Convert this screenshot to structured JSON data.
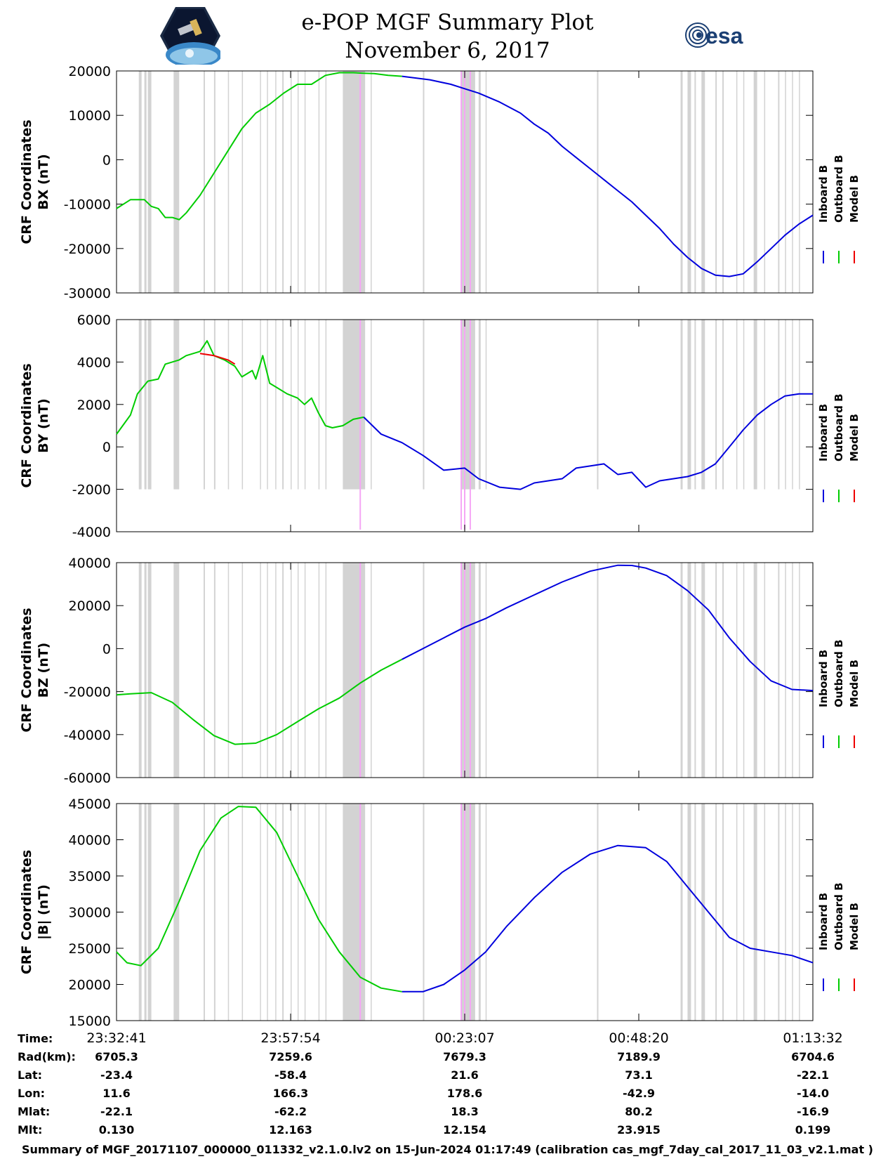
{
  "title": {
    "line1": "e-POP MGF Summary Plot",
    "line2": "November 6, 2017"
  },
  "logos": {
    "left": "cassiope-mission-logo",
    "right": "esa"
  },
  "colors": {
    "inboard": "#0000dd",
    "outboard": "#00cc00",
    "model": "#ee0000",
    "gap_band": "#d3d3d3",
    "event_line": "#f5a6f5"
  },
  "legend": {
    "entries": [
      {
        "name": "Inboard B",
        "color": "#0000dd"
      },
      {
        "name": "Outboard B",
        "color": "#00cc00"
      },
      {
        "name": "Model B",
        "color": "#ee0000"
      }
    ]
  },
  "chart_data": [
    {
      "type": "line",
      "id": "bx",
      "ylabel_line1": "CRF Coordinates",
      "ylabel_line2": "BX (nT)",
      "ylim": [
        -30000,
        20000
      ],
      "yticks": [
        20000,
        10000,
        0,
        -10000,
        -20000,
        -30000
      ],
      "ytick_labels": [
        "20000",
        "10000",
        "0",
        "-10000",
        "-20000",
        "-30000"
      ],
      "series": [
        {
          "name": "Outboard B",
          "color": "#00cc00",
          "x": [
            0,
            0.02,
            0.04,
            0.05,
            0.06,
            0.07,
            0.08,
            0.09,
            0.1,
            0.12,
            0.14,
            0.16,
            0.18,
            0.2,
            0.22,
            0.24,
            0.26,
            0.28,
            0.3,
            0.32,
            0.34,
            0.355,
            0.37,
            0.39,
            0.41
          ],
          "y": [
            -11000,
            -9000,
            -9000,
            -10500,
            -11000,
            -13000,
            -13000,
            -13500,
            -12000,
            -8000,
            -3000,
            2000,
            7000,
            10500,
            12500,
            15000,
            17000,
            17000,
            19000,
            19600,
            19600,
            19500,
            19400,
            19000,
            18800
          ]
        },
        {
          "name": "Inboard B",
          "color": "#0000dd",
          "x": [
            0.41,
            0.45,
            0.48,
            0.5,
            0.52,
            0.55,
            0.58,
            0.6,
            0.62,
            0.64,
            0.66,
            0.68,
            0.7,
            0.72,
            0.74,
            0.76,
            0.78,
            0.8,
            0.82,
            0.84,
            0.86,
            0.88,
            0.9,
            0.92,
            0.94,
            0.96,
            0.98,
            1.0
          ],
          "y": [
            18800,
            18000,
            17000,
            16000,
            15000,
            13000,
            10500,
            8000,
            6000,
            3000,
            500,
            -2000,
            -4500,
            -7000,
            -9500,
            -12500,
            -15500,
            -19000,
            -22000,
            -24500,
            -26000,
            -26300,
            -25700,
            -23000,
            -20000,
            -17000,
            -14500,
            -12500
          ]
        },
        {
          "name": "Model B",
          "color": "#ee0000",
          "x": [],
          "y": []
        }
      ]
    },
    {
      "type": "line",
      "id": "by",
      "ylabel_line1": "CRF Coordinates",
      "ylabel_line2": "BY (nT)",
      "ylim": [
        -4000,
        6000
      ],
      "yticks": [
        6000,
        4000,
        2000,
        0,
        -2000,
        -4000
      ],
      "ytick_labels": [
        "6000",
        "4000",
        "2000",
        "0",
        "-2000",
        "-4000"
      ],
      "series": [
        {
          "name": "Outboard B",
          "color": "#00cc00",
          "x": [
            0,
            0.02,
            0.03,
            0.045,
            0.06,
            0.07,
            0.09,
            0.1,
            0.12,
            0.13,
            0.14,
            0.155,
            0.17,
            0.18,
            0.195,
            0.2,
            0.21,
            0.22,
            0.23,
            0.245,
            0.26,
            0.27,
            0.28,
            0.29,
            0.3,
            0.31,
            0.325,
            0.34,
            0.355
          ],
          "y": [
            600,
            1500,
            2500,
            3100,
            3200,
            3900,
            4100,
            4300,
            4500,
            5000,
            4300,
            4100,
            3800,
            3300,
            3600,
            3200,
            4300,
            3000,
            2800,
            2500,
            2300,
            2000,
            2300,
            1600,
            1000,
            900,
            1000,
            1300,
            1400
          ]
        },
        {
          "name": "Inboard B",
          "color": "#0000dd",
          "x": [
            0.355,
            0.38,
            0.41,
            0.44,
            0.47,
            0.5,
            0.52,
            0.55,
            0.58,
            0.6,
            0.62,
            0.64,
            0.66,
            0.68,
            0.7,
            0.72,
            0.74,
            0.76,
            0.78,
            0.8,
            0.82,
            0.84,
            0.86,
            0.88,
            0.9,
            0.92,
            0.94,
            0.96,
            0.98,
            1.0
          ],
          "y": [
            1400,
            600,
            200,
            -400,
            -1100,
            -1000,
            -1500,
            -1900,
            -2000,
            -1700,
            -1600,
            -1500,
            -1000,
            -900,
            -800,
            -1300,
            -1200,
            -1900,
            -1600,
            -1500,
            -1400,
            -1200,
            -800,
            0,
            800,
            1500,
            2000,
            2400,
            2500,
            2500
          ]
        },
        {
          "name": "Model B",
          "color": "#ee0000",
          "x": [
            0.12,
            0.14,
            0.16,
            0.17
          ],
          "y": [
            4400,
            4300,
            4100,
            3900
          ]
        }
      ]
    },
    {
      "type": "line",
      "id": "bz",
      "ylabel_line1": "CRF Coordinates",
      "ylabel_line2": "BZ (nT)",
      "ylim": [
        -60000,
        40000
      ],
      "yticks": [
        40000,
        20000,
        0,
        -20000,
        -40000,
        -60000
      ],
      "ytick_labels": [
        "40000",
        "20000",
        "0",
        "-20000",
        "-40000",
        "-60000"
      ],
      "series": [
        {
          "name": "Outboard B",
          "color": "#00cc00",
          "x": [
            0,
            0.02,
            0.05,
            0.08,
            0.11,
            0.14,
            0.17,
            0.2,
            0.23,
            0.26,
            0.29,
            0.32,
            0.35,
            0.38,
            0.41
          ],
          "y": [
            -21500,
            -21000,
            -20500,
            -25000,
            -33000,
            -40500,
            -44500,
            -44000,
            -40000,
            -34000,
            -28000,
            -23000,
            -16000,
            -10000,
            -5000
          ]
        },
        {
          "name": "Inboard B",
          "color": "#0000dd",
          "x": [
            0.41,
            0.44,
            0.47,
            0.5,
            0.53,
            0.56,
            0.6,
            0.64,
            0.68,
            0.72,
            0.74,
            0.76,
            0.79,
            0.82,
            0.85,
            0.88,
            0.91,
            0.94,
            0.97,
            1.0
          ],
          "y": [
            -5000,
            0,
            5000,
            10000,
            14000,
            19000,
            25000,
            31000,
            36000,
            38800,
            38700,
            37500,
            34000,
            27000,
            18000,
            5000,
            -6000,
            -15000,
            -19000,
            -19500
          ]
        },
        {
          "name": "Model B",
          "color": "#ee0000",
          "x": [],
          "y": []
        }
      ]
    },
    {
      "type": "line",
      "id": "bmag",
      "ylabel_line1": "CRF Coordinates",
      "ylabel_line2": "|B| (nT)",
      "ylim": [
        15000,
        45000
      ],
      "yticks": [
        45000,
        40000,
        35000,
        30000,
        25000,
        20000,
        15000
      ],
      "ytick_labels": [
        "45000",
        "40000",
        "35000",
        "30000",
        "25000",
        "20000",
        "15000"
      ],
      "series": [
        {
          "name": "Outboard B",
          "color": "#00cc00",
          "x": [
            0,
            0.015,
            0.035,
            0.06,
            0.09,
            0.12,
            0.15,
            0.175,
            0.2,
            0.23,
            0.26,
            0.29,
            0.32,
            0.35,
            0.38,
            0.41
          ],
          "y": [
            24500,
            23000,
            22600,
            25000,
            31500,
            38500,
            43000,
            44600,
            44500,
            41000,
            35000,
            29000,
            24500,
            21000,
            19500,
            19000
          ]
        },
        {
          "name": "Inboard B",
          "color": "#0000dd",
          "x": [
            0.41,
            0.44,
            0.47,
            0.5,
            0.53,
            0.56,
            0.6,
            0.64,
            0.68,
            0.72,
            0.76,
            0.79,
            0.82,
            0.85,
            0.88,
            0.91,
            0.94,
            0.97,
            1.0
          ],
          "y": [
            19000,
            19000,
            20000,
            22000,
            24500,
            28000,
            32000,
            35500,
            38000,
            39200,
            38900,
            37000,
            33500,
            30000,
            26500,
            25000,
            24500,
            24000,
            23000
          ]
        },
        {
          "name": "Model B",
          "color": "#ee0000",
          "x": [],
          "y": []
        }
      ]
    }
  ],
  "gap_bands": [
    [
      0.032,
      0.036
    ],
    [
      0.04,
      0.043
    ],
    [
      0.045,
      0.05
    ],
    [
      0.082,
      0.09
    ],
    [
      0.125,
      0.127
    ],
    [
      0.14,
      0.142
    ],
    [
      0.16,
      0.161
    ],
    [
      0.18,
      0.181
    ],
    [
      0.206,
      0.207
    ],
    [
      0.216,
      0.217
    ],
    [
      0.228,
      0.229
    ],
    [
      0.238,
      0.24
    ],
    [
      0.25,
      0.251
    ],
    [
      0.26,
      0.261
    ],
    [
      0.27,
      0.271
    ],
    [
      0.29,
      0.291
    ],
    [
      0.3,
      0.301
    ],
    [
      0.325,
      0.357
    ],
    [
      0.365,
      0.366
    ],
    [
      0.44,
      0.442
    ],
    [
      0.495,
      0.515
    ],
    [
      0.52,
      0.523
    ],
    [
      0.53,
      0.531
    ],
    [
      0.69,
      0.692
    ],
    [
      0.81,
      0.813
    ],
    [
      0.82,
      0.825
    ],
    [
      0.83,
      0.832
    ],
    [
      0.84,
      0.845
    ],
    [
      0.86,
      0.862
    ],
    [
      0.87,
      0.872
    ],
    [
      0.89,
      0.891
    ],
    [
      0.9,
      0.901
    ],
    [
      0.915,
      0.92
    ],
    [
      0.93,
      0.931
    ],
    [
      0.95,
      0.952
    ],
    [
      0.96,
      0.961
    ],
    [
      0.97,
      0.971
    ],
    [
      0.98,
      0.981
    ]
  ],
  "event_lines": [
    0.35,
    0.495,
    0.5,
    0.508
  ],
  "x_axis": {
    "tick_positions": [
      0,
      0.25,
      0.5,
      0.75,
      1.0
    ],
    "tick_labels": [
      "23:32:41",
      "23:57:54",
      "00:23:07",
      "00:48:20",
      "01:13:32"
    ]
  },
  "footer": {
    "rows": [
      {
        "label": "Time:",
        "values": [
          "23:32:41",
          "23:57:54",
          "00:23:07",
          "00:48:20",
          "01:13:32"
        ]
      },
      {
        "label": "Rad(km):",
        "values": [
          "6705.3",
          "7259.6",
          "7679.3",
          "7189.9",
          "6704.6"
        ]
      },
      {
        "label": "Lat:",
        "values": [
          "-23.4",
          "-58.4",
          "21.6",
          "73.1",
          "-22.1"
        ]
      },
      {
        "label": "Lon:",
        "values": [
          "11.6",
          "166.3",
          "178.6",
          "-42.9",
          "-14.0"
        ]
      },
      {
        "label": "Mlat:",
        "values": [
          "-22.1",
          "-62.2",
          "18.3",
          "80.2",
          "-16.9"
        ]
      },
      {
        "label": "Mlt:",
        "values": [
          "0.130",
          "12.163",
          "12.154",
          "23.915",
          "0.199"
        ]
      }
    ],
    "caption": "Summary of MGF_20171107_000000_011332_v2.1.0.lv2 on 15-Jun-2024 01:17:49 (calibration cas_mgf_7day_cal_2017_11_03_v2.1.mat )"
  }
}
